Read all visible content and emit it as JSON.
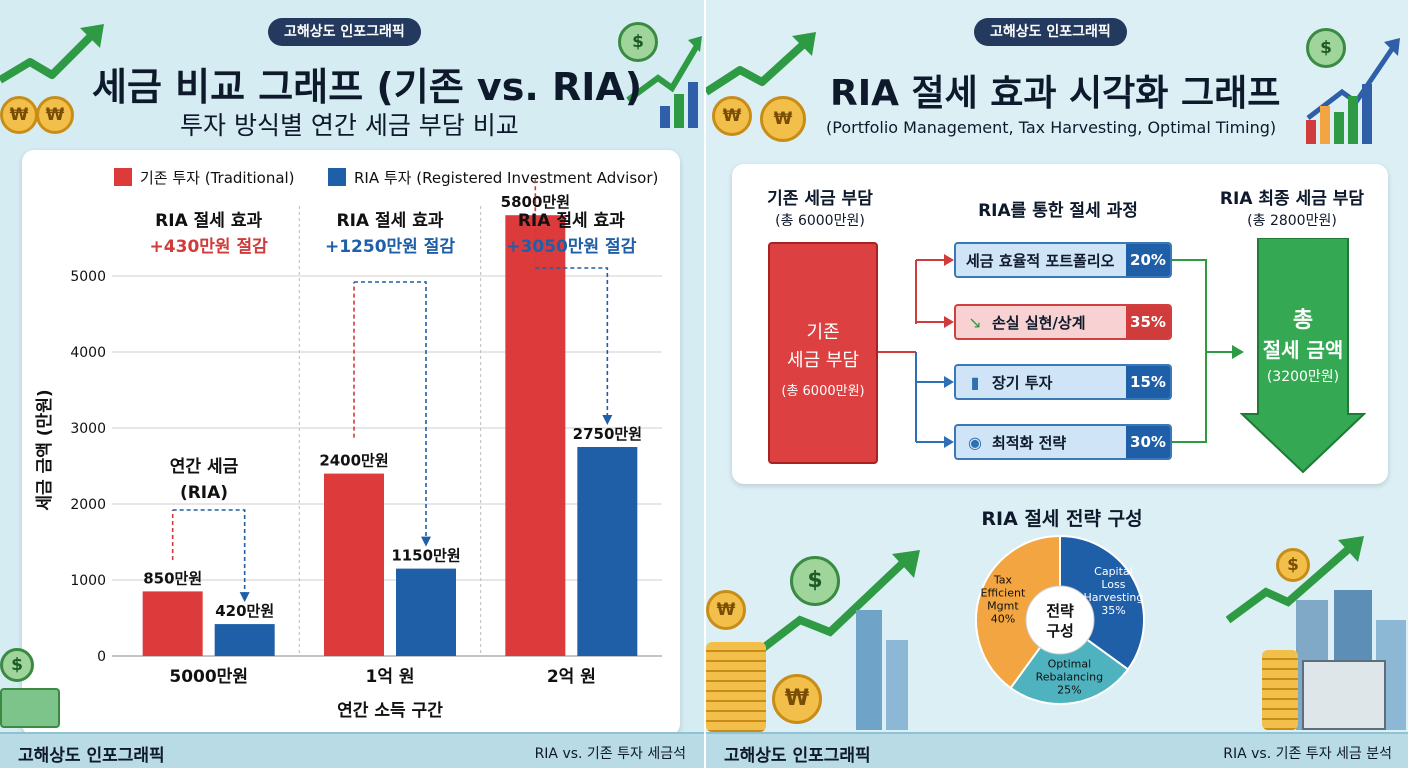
{
  "left": {
    "badge": "고해상도 인포그래픽",
    "title": "세금 비교 그래프 (기존 vs. RIA)",
    "subtitle": "투자 방식별 연간 세금 부담 비교",
    "legend": [
      {
        "label": "기존 투자 (Traditional)",
        "color": "#dd3b3b"
      },
      {
        "label": "RIA 투자 (Registered Investment Advisor)",
        "color": "#1f5fa8"
      }
    ],
    "savings": [
      {
        "title": "RIA 절세 효과",
        "amount": "+430만원 절감",
        "color": "#d03b3b"
      },
      {
        "title": "RIA 절세 효과",
        "amount": "+1250만원 절감",
        "color": "#1f5fa8"
      },
      {
        "title": "RIA 절세 효과",
        "amount": "+3050만원 절감",
        "color": "#1f5fa8"
      }
    ],
    "annual_tax_note": [
      "연간 세금",
      "(RIA)"
    ],
    "footer_left": "고해상도 인포그래픽",
    "footer_right": "RIA vs. 기존 투자 세금석"
  },
  "chart_data": {
    "type": "bar",
    "categories": [
      "5000만원",
      "1억 원",
      "2억 원"
    ],
    "series": [
      {
        "name": "기존 투자 (Traditional)",
        "values": [
          850,
          2400,
          5800
        ],
        "labels": [
          "850만원",
          "2400만원",
          "5800만원"
        ],
        "color": "#dd3b3b"
      },
      {
        "name": "RIA 투자 (Registered Investment Advisor)",
        "values": [
          420,
          1150,
          2750
        ],
        "labels": [
          "420만원",
          "1150만원",
          "2750만원"
        ],
        "color": "#1f5fa8"
      }
    ],
    "xlabel": "연간 소득 구간",
    "ylabel": "세금 금액 (만원)",
    "yticks": [
      0,
      1000,
      2000,
      3000,
      4000,
      5000
    ],
    "ylim": [
      0,
      5500
    ],
    "grid": true,
    "legend_position": "top"
  },
  "right": {
    "badge": "고해상도 인포그래픽",
    "title": "RIA 절세 효과 시각화 그래프",
    "subtitle": "(Portfolio Management, Tax Harvesting, Optimal Timing)",
    "col1_title": "기존 세금 부담",
    "col1_sub": "(총 6000만원)",
    "col2_title": "RIA를 통한 절세 과정",
    "col3_title": "RIA 최종 세금 부담",
    "col3_sub": "(총 2800만원)",
    "red_box": [
      "기존",
      "세금 부담",
      "(총 6000만원)"
    ],
    "steps": [
      {
        "label": "세금 효율적 포트폴리오",
        "pct": "20%",
        "icon": "none",
        "style": "blue"
      },
      {
        "label": "손실 실현/상계",
        "pct": "35%",
        "icon": "trend-down-icon",
        "style": "red"
      },
      {
        "label": "장기 투자",
        "pct": "15%",
        "icon": "bar-chart-icon",
        "style": "blue"
      },
      {
        "label": "최적화 전략",
        "pct": "30%",
        "icon": "coins-chart-icon",
        "style": "blue"
      }
    ],
    "green_arrow": [
      "총",
      "절세 금액",
      "(3200만원)"
    ],
    "pie_title": "RIA 절세 전략 구성",
    "pie_center": [
      "전략",
      "구성"
    ],
    "pie_data": {
      "type": "pie",
      "slices": [
        {
          "label": "Capital Loss Harvesting",
          "value": 35,
          "color": "#1f5fa8"
        },
        {
          "label": "Optimal Rebalancing",
          "value": 25,
          "color": "#4fb3bf"
        },
        {
          "label": "Tax Efficient Mgmt",
          "value": 40,
          "color": "#f2a541"
        }
      ],
      "display_labels": [
        [
          "Capital",
          "Loss",
          "Harvesting",
          "35%"
        ],
        [
          "Optimal",
          "Rebalancing",
          "25%"
        ],
        [
          "Tax",
          "Efficient",
          "Mgmt",
          "40%"
        ]
      ]
    },
    "footer_left": "고해상도 인포그래픽",
    "footer_right": "RIA vs. 기존 투자 세금 분석"
  },
  "icons": {
    "coin_won": "₩",
    "coin_dollar": "$"
  }
}
